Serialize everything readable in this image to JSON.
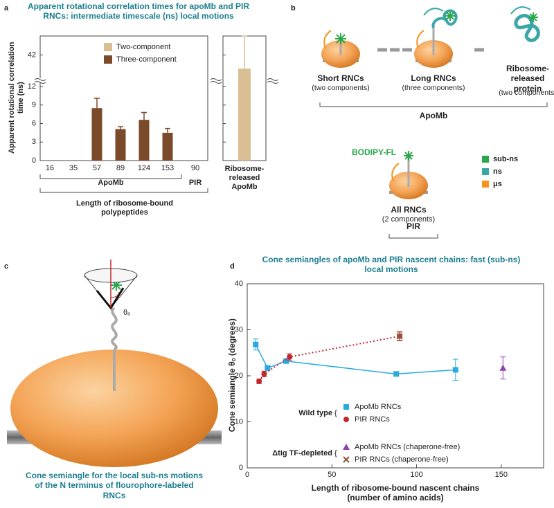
{
  "panel_labels": [
    "a",
    "b",
    "c",
    "d"
  ],
  "chart_data": [
    {
      "type": "bar",
      "title": "Apparent rotational correlation times for apoMb and PIR RNCs: intermediate timescale (ns) local motions",
      "y_label": "Apparent rotational correlation time (ns)",
      "x_label": "Length of ribosome-bound polypeptides",
      "categories": [
        "16",
        "35",
        "57",
        "89",
        "124",
        "153",
        "90",
        "Ribosome-released ApoMb"
      ],
      "category_groups": [
        "ApoMb",
        "PIR"
      ],
      "series": [
        {
          "name": "Two-component",
          "color": "#d9bf93",
          "values": [
            null,
            null,
            null,
            null,
            null,
            null,
            null,
            29
          ],
          "errors": [
            null,
            null,
            null,
            null,
            null,
            null,
            null,
            31
          ]
        },
        {
          "name": "Three-component",
          "color": "#7b4a2b",
          "values": [
            null,
            null,
            8.5,
            5.1,
            6.6,
            4.5,
            null,
            null
          ],
          "errors": [
            null,
            null,
            1.6,
            0.4,
            1.2,
            0.7,
            null,
            null
          ]
        }
      ],
      "ylim": [
        0,
        60
      ],
      "ybreak": 12,
      "yticks": [
        0,
        3,
        6,
        9,
        12,
        42
      ]
    },
    {
      "type": "line",
      "title": "Cone semiangles of apoMb and PIR nascent chains: fast (sub-ns) local motions",
      "y_label": "Cone semiangle θₒ (degrees)",
      "x_label": "Length of ribosome-bound nascent chains (number of amino acids)",
      "legend_groups": [
        "Wild type",
        "Δtig TF-depleted"
      ],
      "series": [
        {
          "name": "ApoMb RNCs",
          "group": 0,
          "color": "#29aae1",
          "marker": "square",
          "line_style": "solid",
          "x": [
            5,
            12,
            23,
            88,
            123
          ],
          "y": [
            26.8,
            21.7,
            23.2,
            20.4,
            21.3
          ],
          "errors": [
            1.2,
            0.4,
            0.4,
            0.4,
            2.3
          ]
        },
        {
          "name": "PIR RNCs",
          "group": 0,
          "color": "#c1272d",
          "marker": "circle",
          "line_style": "dotted",
          "x": [
            7,
            10,
            25,
            90
          ],
          "y": [
            18.8,
            20.4,
            24.1,
            28.6
          ],
          "errors": [
            0.5,
            0.6,
            0.7,
            0.9
          ]
        },
        {
          "name": "ApoMb RNCs (chaperone-free)",
          "group": 1,
          "color": "#8e44ad",
          "marker": "triangle",
          "x": [
            151
          ],
          "y": [
            21.7
          ],
          "errors": [
            2.4
          ]
        },
        {
          "name": "PIR RNCs (chaperone-free)",
          "group": 1,
          "color": "#8b5a3c",
          "marker": "x",
          "x": [
            90
          ],
          "y": [
            28.6
          ],
          "errors": [
            1
          ]
        }
      ],
      "xlim": [
        0,
        175
      ],
      "xticks": [
        0,
        50,
        100,
        150
      ],
      "ylim": [
        0,
        40
      ],
      "yticks": [
        0,
        10,
        20,
        30,
        40
      ]
    }
  ],
  "diagram_b": {
    "stages": [
      {
        "label": "Short RNCs",
        "note": "(two components)"
      },
      {
        "label": "Long RNCs",
        "note": "(three components)"
      },
      {
        "label": "Ribosome-released protein",
        "note": "(two components)"
      }
    ],
    "group": "ApoMb",
    "pir": {
      "probe": "BODIPY-FL",
      "label": "All RNCs",
      "note": "(2 components)",
      "group": "PIR"
    },
    "legend": [
      {
        "label": "sub-ns",
        "color": "#2aa64b"
      },
      {
        "label": "ns",
        "color": "#3aa6a8"
      },
      {
        "label": "μs",
        "color": "#f7941d"
      }
    ]
  },
  "diagram_c": {
    "angle_label": "θₒ",
    "caption": "Cone semiangle for the local sub-ns motions of the N terminus of flourophore-labeled RNCs"
  }
}
